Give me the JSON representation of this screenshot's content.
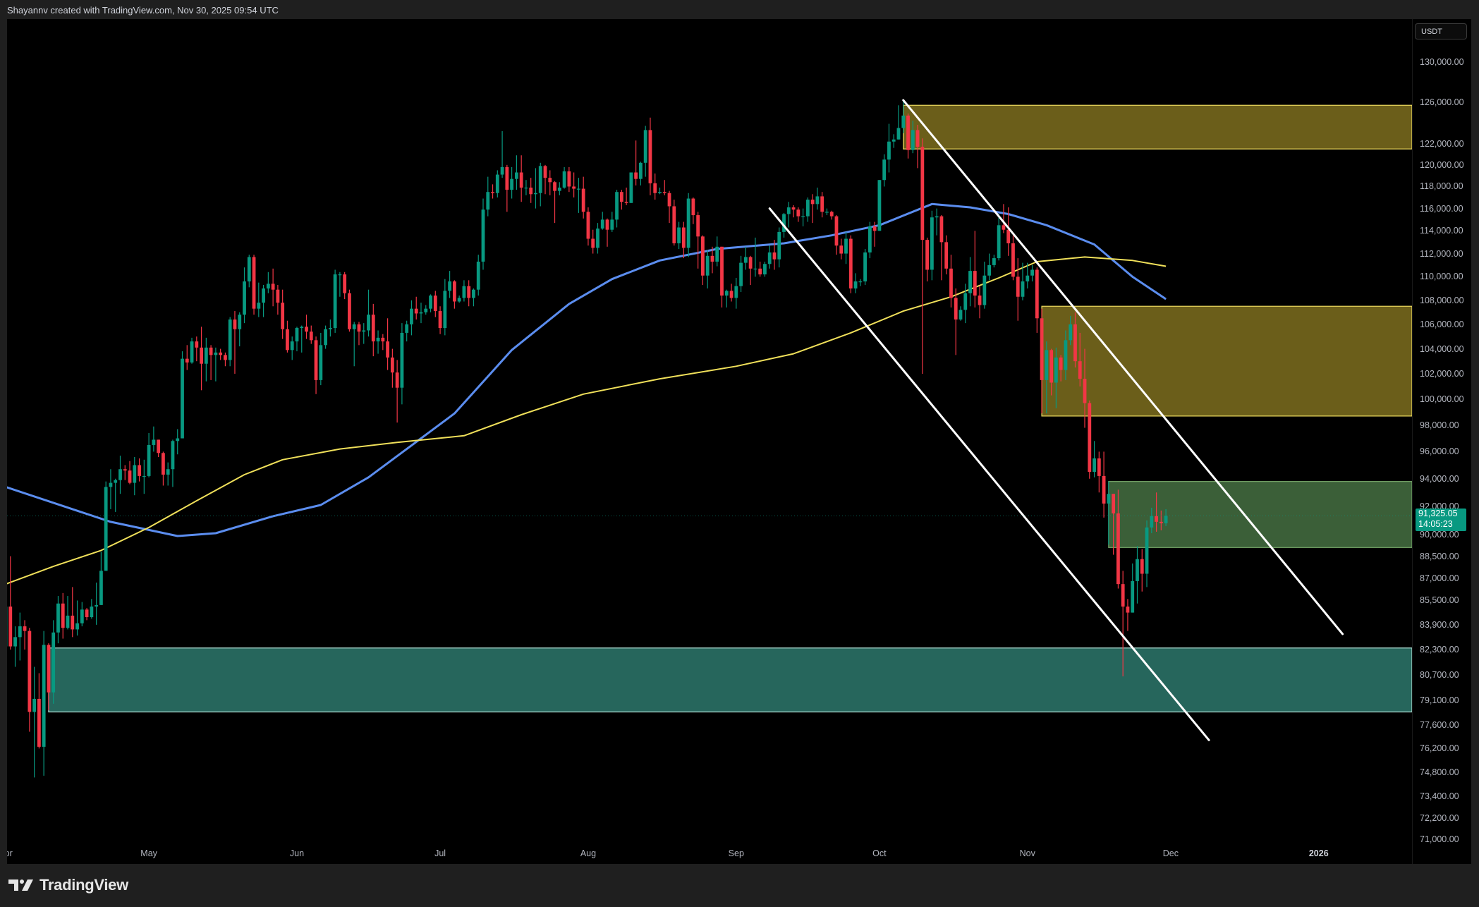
{
  "header": {
    "credit": "Shayannv created with TradingView.com, Nov 30, 2025 09:54 UTC"
  },
  "footer": {
    "brand": "TradingView"
  },
  "chart_data": {
    "type": "candlestick",
    "currency_button": "USDT",
    "y_scale": "log",
    "ylim": [
      70000,
      133000
    ],
    "colors": {
      "up": "#089981",
      "down": "#f23645",
      "ma_blue": "#5b8def",
      "ma_yellow": "#f0e05a",
      "trendline": "#ffffff"
    },
    "y_ticks": [
      "130,000.00",
      "126,000.00",
      "122,000.00",
      "120,000.00",
      "118,000.00",
      "116,000.00",
      "114,000.00",
      "112,000.00",
      "110,000.00",
      "108,000.00",
      "106,000.00",
      "104,000.00",
      "102,000.00",
      "100,000.00",
      "98,000.00",
      "96,000.00",
      "94,000.00",
      "92,000.00",
      "90,000.00",
      "88,500.00",
      "87,000.00",
      "85,500.00",
      "83,900.00",
      "82,300.00",
      "80,700.00",
      "79,100.00",
      "77,600.00",
      "76,200.00",
      "74,800.00",
      "73,400.00",
      "72,200.00",
      "71,000.00"
    ],
    "x_ticks": [
      {
        "label": "Apr",
        "date": "2025-04-01"
      },
      {
        "label": "May",
        "date": "2025-05-01"
      },
      {
        "label": "Jun",
        "date": "2025-06-01"
      },
      {
        "label": "Jul",
        "date": "2025-07-01"
      },
      {
        "label": "Aug",
        "date": "2025-08-01"
      },
      {
        "label": "Sep",
        "date": "2025-09-01"
      },
      {
        "label": "Oct",
        "date": "2025-10-01"
      },
      {
        "label": "Nov",
        "date": "2025-11-01"
      },
      {
        "label": "Dec",
        "date": "2025-12-01"
      },
      {
        "label": "2026",
        "date": "2026-01-01"
      }
    ],
    "last_price": {
      "price": "91,325.05",
      "countdown": "14:05:23",
      "value": 91325.05
    },
    "candles": {
      "start": "2025-04-01",
      "first_open": 82500,
      "close": [
        85100,
        82500,
        83100,
        83800,
        83500,
        78400,
        79200,
        76300,
        82600,
        79600,
        83400,
        85300,
        83700,
        84500,
        83600,
        84000,
        84900,
        84400,
        85100,
        85200,
        87500,
        93400,
        93700,
        93900,
        94700,
        94600,
        93700,
        95000,
        94200,
        94200,
        96500,
        96900,
        95900,
        94300,
        94700,
        96800,
        97000,
        103200,
        102900,
        104600,
        104100,
        102800,
        104100,
        103500,
        103700,
        103500,
        103100,
        106400,
        105600,
        106800,
        109600,
        111700,
        107300,
        107800,
        109000,
        109400,
        108900,
        107800,
        105600,
        103900,
        104600,
        105700,
        105800,
        105400,
        104700,
        101500,
        104300,
        105600,
        105700,
        110200,
        110200,
        108600,
        105600,
        106000,
        105400,
        105500,
        106800,
        104600,
        104900,
        104600,
        103300,
        102100,
        100900,
        105300,
        106000,
        107300,
        106900,
        107000,
        107300,
        108400,
        107100,
        105700,
        108800,
        109600,
        107900,
        108200,
        109200,
        108200,
        108900,
        111300,
        115900,
        117500,
        117400,
        119100,
        119800,
        117700,
        118700,
        119300,
        117900,
        117900,
        117300,
        117400,
        119900,
        118800,
        118400,
        117600,
        117900,
        119400,
        118000,
        117800,
        117800,
        115700,
        113300,
        112500,
        114200,
        115000,
        114100,
        115000,
        117500,
        116600,
        116500,
        119300,
        118700,
        120200,
        123300,
        118300,
        117400,
        117500,
        117400,
        116200,
        112900,
        114300,
        112500,
        116900,
        115400,
        113500,
        110100,
        111800,
        111300,
        112600,
        108400,
        108800,
        108200,
        109200,
        111200,
        111700,
        110700,
        110700,
        110200,
        111100,
        112100,
        111500,
        113900,
        115500,
        116100,
        115900,
        115300,
        115300,
        116800,
        116400,
        117100,
        115700,
        115700,
        115300,
        112700,
        112000,
        113300,
        109000,
        109600,
        109600,
        112100,
        114400,
        114000,
        118600,
        120500,
        122200,
        122400,
        123500,
        124700,
        121400,
        123300,
        121700,
        113200,
        110600,
        115200,
        115300,
        113000,
        110700,
        108200,
        106400,
        107200,
        108600,
        110500,
        108400,
        107600,
        110100,
        111000,
        111600,
        114500,
        114100,
        112900,
        110000,
        108300,
        109600,
        110100,
        110600,
        106500,
        101500,
        103900,
        101300,
        103300,
        102300,
        104700,
        106000,
        103000,
        101600,
        99700,
        94500,
        95500,
        94200,
        92200,
        92900,
        91500,
        86600,
        85100,
        84700,
        86800,
        88300,
        87300,
        90500,
        91300,
        90900,
        90800,
        91325
      ],
      "high": [
        85500,
        88500,
        83800,
        84700,
        84200,
        83700,
        81200,
        80800,
        83500,
        82700,
        84200,
        85800,
        86000,
        85800,
        86400,
        85500,
        85400,
        85000,
        85600,
        86700,
        88800,
        93800,
        94700,
        94000,
        95700,
        95000,
        95300,
        95600,
        95500,
        95400,
        97400,
        97900,
        96900,
        96000,
        95200,
        96900,
        97700,
        103800,
        104300,
        104900,
        105000,
        105800,
        104900,
        104300,
        104100,
        104000,
        103700,
        106600,
        107100,
        107000,
        110800,
        111900,
        111900,
        109500,
        109300,
        110400,
        110700,
        109300,
        108900,
        106300,
        105000,
        105800,
        105900,
        106800,
        105900,
        105000,
        105300,
        105900,
        106400,
        110600,
        110400,
        110400,
        108900,
        106200,
        106200,
        106100,
        108900,
        107700,
        105500,
        105200,
        106500,
        104000,
        103100,
        106100,
        106300,
        108000,
        108300,
        107800,
        107600,
        108500,
        108800,
        107500,
        109800,
        110500,
        109700,
        108400,
        109700,
        109700,
        109000,
        111900,
        116900,
        118900,
        118200,
        119500,
        123200,
        120000,
        119800,
        120900,
        120900,
        118600,
        118800,
        119700,
        120200,
        120000,
        119500,
        118500,
        118400,
        119800,
        119800,
        119300,
        118800,
        118900,
        116100,
        114100,
        114700,
        115700,
        115100,
        115700,
        117700,
        117700,
        117900,
        119300,
        122300,
        120300,
        123700,
        124500,
        119200,
        117900,
        118600,
        117600,
        116800,
        114800,
        114800,
        117400,
        117000,
        115700,
        113600,
        112300,
        112600,
        113500,
        112600,
        108900,
        109400,
        109900,
        111800,
        112600,
        111800,
        113400,
        111300,
        111300,
        112700,
        113200,
        114300,
        115600,
        116600,
        116300,
        116100,
        116000,
        117000,
        117300,
        117900,
        117500,
        116000,
        115800,
        115400,
        113300,
        113900,
        113600,
        110300,
        109800,
        112400,
        114800,
        114800,
        118600,
        121000,
        123900,
        122900,
        125700,
        126200,
        124900,
        124200,
        123800,
        122500,
        113400,
        115800,
        116000,
        115400,
        113600,
        111900,
        109000,
        107500,
        109400,
        111700,
        114000,
        109200,
        111300,
        112000,
        111900,
        115500,
        116400,
        116100,
        113600,
        111600,
        111200,
        111200,
        111000,
        110800,
        107300,
        104600,
        104000,
        104100,
        103500,
        105500,
        106700,
        107000,
        105300,
        104000,
        99900,
        96800,
        96000,
        96000,
        93800,
        92800,
        93200,
        87500,
        85600,
        88000,
        89200,
        89000,
        91000,
        91900,
        93000,
        91700,
        91800
      ],
      "low": [
        82400,
        82300,
        81200,
        81600,
        82300,
        77200,
        74500,
        76200,
        74600,
        78500,
        78900,
        82700,
        83000,
        83600,
        83100,
        83200,
        83800,
        84200,
        84300,
        83900,
        85200,
        87500,
        91800,
        91600,
        92900,
        93900,
        93600,
        92800,
        93800,
        92900,
        94100,
        96000,
        95600,
        93500,
        93500,
        93400,
        95800,
        97000,
        102300,
        102800,
        103000,
        100700,
        101400,
        101500,
        101400,
        103100,
        102600,
        102600,
        102000,
        104200,
        106100,
        109100,
        106800,
        106600,
        106600,
        108600,
        107500,
        106800,
        104800,
        103700,
        103100,
        103800,
        103700,
        104800,
        104400,
        100400,
        101100,
        104000,
        105000,
        105300,
        108300,
        108100,
        105400,
        102600,
        104300,
        104400,
        105000,
        103400,
        103600,
        103900,
        102300,
        100900,
        98200,
        99600,
        104600,
        105100,
        106400,
        106100,
        106800,
        107000,
        106600,
        105200,
        105100,
        108200,
        107300,
        107800,
        107900,
        107500,
        107500,
        108400,
        110600,
        115300,
        116900,
        117000,
        118800,
        115700,
        116900,
        117700,
        116600,
        117200,
        116500,
        116000,
        116200,
        117300,
        117200,
        114700,
        117200,
        117800,
        117500,
        117000,
        115600,
        115100,
        112700,
        112000,
        112000,
        114100,
        112600,
        113900,
        114300,
        115900,
        116300,
        116500,
        118100,
        118100,
        118900,
        117200,
        116800,
        117300,
        117200,
        114700,
        112700,
        112400,
        111600,
        111700,
        114600,
        110700,
        109300,
        109000,
        110300,
        110900,
        107400,
        107400,
        107900,
        107300,
        108700,
        110600,
        109300,
        110000,
        110000,
        110000,
        110700,
        110600,
        110800,
        113400,
        114300,
        115200,
        114800,
        114400,
        114800,
        114700,
        115900,
        115200,
        115400,
        115000,
        111900,
        111500,
        111100,
        108600,
        108600,
        109200,
        109300,
        111600,
        112600,
        114000,
        118000,
        119300,
        121600,
        122400,
        123000,
        120600,
        121100,
        119700,
        102000,
        109600,
        109700,
        113600,
        109700,
        110200,
        107400,
        103500,
        106300,
        106100,
        107500,
        107400,
        106500,
        107300,
        109700,
        110800,
        111400,
        113800,
        111800,
        109700,
        106300,
        108000,
        109000,
        109600,
        105300,
        98900,
        98900,
        100300,
        99300,
        101400,
        101500,
        104300,
        102500,
        101000,
        97800,
        94000,
        94100,
        93000,
        91200,
        89300,
        88600,
        86300,
        80600,
        83500,
        84700,
        85300,
        86100,
        86400,
        90100,
        90200,
        90300,
        90600
      ]
    },
    "moving_averages": [
      {
        "color": "#5b8def",
        "points": [
          [
            "2025-04-01",
            93400
          ],
          [
            "2025-04-15",
            91800
          ],
          [
            "2025-04-23",
            90900
          ],
          [
            "2025-05-07",
            89900
          ],
          [
            "2025-05-15",
            90100
          ],
          [
            "2025-05-27",
            91300
          ],
          [
            "2025-06-06",
            92100
          ],
          [
            "2025-06-16",
            94100
          ],
          [
            "2025-06-24",
            96200
          ],
          [
            "2025-07-04",
            98900
          ],
          [
            "2025-07-16",
            103900
          ],
          [
            "2025-07-28",
            107700
          ],
          [
            "2025-08-06",
            109800
          ],
          [
            "2025-08-16",
            111400
          ],
          [
            "2025-08-28",
            112400
          ],
          [
            "2025-09-11",
            112900
          ],
          [
            "2025-09-21",
            113600
          ],
          [
            "2025-10-01",
            114500
          ],
          [
            "2025-10-12",
            116400
          ],
          [
            "2025-10-20",
            116100
          ],
          [
            "2025-10-28",
            115500
          ],
          [
            "2025-11-05",
            114500
          ],
          [
            "2025-11-15",
            112800
          ],
          [
            "2025-11-23",
            110000
          ],
          [
            "2025-11-30",
            108100
          ]
        ]
      },
      {
        "color": "#f0e05a",
        "points": [
          [
            "2025-04-01",
            86600
          ],
          [
            "2025-04-11",
            87800
          ],
          [
            "2025-04-21",
            88900
          ],
          [
            "2025-05-01",
            90500
          ],
          [
            "2025-05-11",
            92400
          ],
          [
            "2025-05-21",
            94300
          ],
          [
            "2025-05-29",
            95400
          ],
          [
            "2025-06-10",
            96200
          ],
          [
            "2025-06-22",
            96700
          ],
          [
            "2025-07-06",
            97200
          ],
          [
            "2025-07-18",
            98800
          ],
          [
            "2025-07-31",
            100400
          ],
          [
            "2025-08-16",
            101600
          ],
          [
            "2025-09-01",
            102600
          ],
          [
            "2025-09-13",
            103600
          ],
          [
            "2025-09-25",
            105300
          ],
          [
            "2025-10-06",
            107100
          ],
          [
            "2025-10-16",
            108300
          ],
          [
            "2025-10-26",
            109900
          ],
          [
            "2025-11-03",
            111300
          ],
          [
            "2025-11-13",
            111700
          ],
          [
            "2025-11-23",
            111400
          ],
          [
            "2025-11-30",
            110900
          ]
        ]
      }
    ],
    "zones": [
      {
        "from": "2025-10-06",
        "top": 125700,
        "bottom": 121500,
        "fill": "#6b5e1a",
        "border": "#e3d15a"
      },
      {
        "from": "2025-11-04",
        "top": 107500,
        "bottom": 98700,
        "fill": "#6b5e1a",
        "border": "#e3d15a"
      },
      {
        "from": "2025-11-18",
        "top": 93800,
        "bottom": 89100,
        "fill": "#3b5f38",
        "border": "#6f9c63"
      },
      {
        "from": "2025-04-10",
        "top": 82400,
        "bottom": 78400,
        "fill": "#26665c",
        "border": "#a9d8cf"
      }
    ],
    "trendlines": [
      {
        "start": [
          "2025-10-06",
          126200
        ],
        "end": [
          "2026-01-06",
          83300
        ]
      },
      {
        "start": [
          "2025-09-08",
          116000
        ],
        "end": [
          "2025-12-09",
          76700
        ]
      }
    ]
  }
}
